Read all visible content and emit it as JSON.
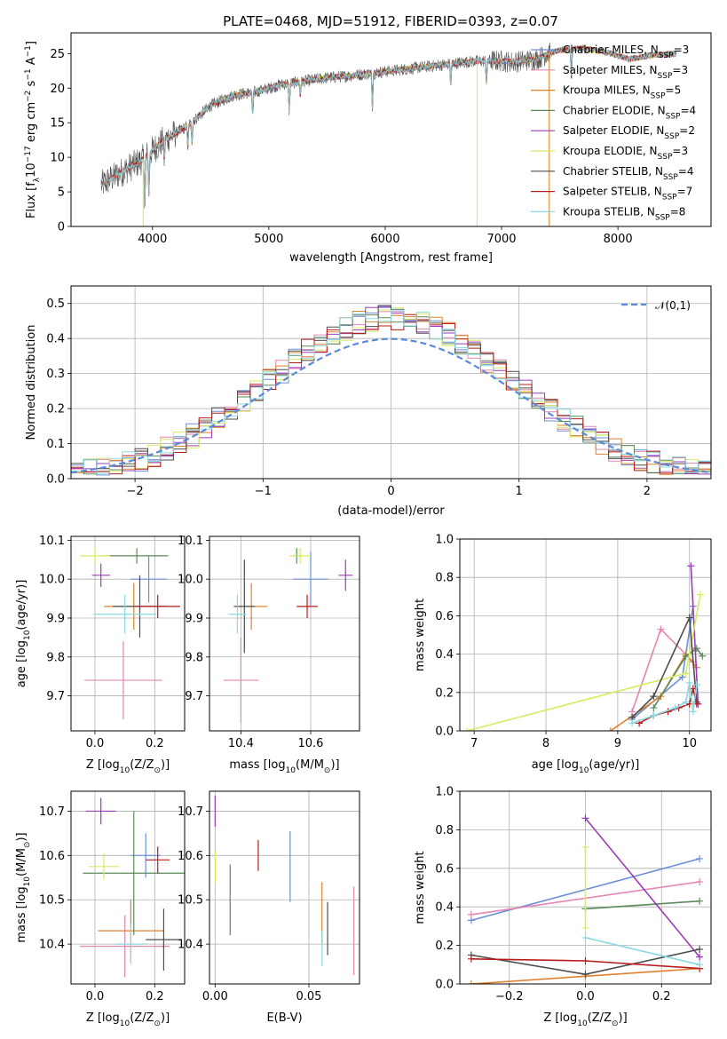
{
  "figure_title": "PLATE=0468, MJD=51912, FIBERID=0393, z=0.07",
  "colors": [
    "#6a8fd8",
    "#e486b3",
    "#e0822c",
    "#5c8a5a",
    "#9a3cb8",
    "#d6ec62",
    "#4d4d4d",
    "#b81c1c",
    "#8ad8e0"
  ],
  "chart_data": [
    {
      "id": "spectrum",
      "type": "line",
      "title": "PLATE=0468, MJD=51912, FIBERID=0393, z=0.07",
      "xlabel": "wavelength [Angstrom, rest frame]",
      "ylabel_parts": [
        "Flux [f",
        "λ",
        "10",
        "−17",
        " erg cm",
        "−2",
        " s",
        "−1",
        " A",
        "−1",
        "]"
      ],
      "xlim": [
        3300,
        8800
      ],
      "ylim": [
        0,
        28
      ],
      "xticks": [
        4000,
        5000,
        6000,
        7000,
        8000
      ],
      "yticks": [
        0,
        5,
        10,
        15,
        20,
        25
      ],
      "grid": false,
      "legend_position": "bottom-right",
      "continuum": {
        "x": [
          3560,
          3700,
          3800,
          3900,
          4000,
          4100,
          4200,
          4300,
          4400,
          4500,
          4700,
          4900,
          5100,
          5300,
          5500,
          5700,
          5900,
          6100,
          6300,
          6500,
          6700,
          6900,
          7100,
          7300,
          7400,
          7500,
          7700,
          7900,
          8100,
          8300,
          8500
        ],
        "y": [
          6,
          7.5,
          8.5,
          9.5,
          11,
          12.5,
          13.5,
          14.5,
          16,
          17.5,
          19,
          19.5,
          20.5,
          21,
          21.5,
          21.8,
          22.2,
          22.6,
          23,
          23.4,
          23.8,
          24,
          23.8,
          24.2,
          25,
          25.5,
          25.8,
          25.2,
          24.2,
          24.8,
          25
        ]
      },
      "series": [
        {
          "name_base": "Chabrier MILES, N",
          "name_sub": "SSP",
          "name_tail": "=3",
          "color": "#6a8fd8"
        },
        {
          "name_base": "Salpeter MILES, N",
          "name_sub": "SSP",
          "name_tail": "=3",
          "color": "#e486b3"
        },
        {
          "name_base": "Kroupa MILES, N",
          "name_sub": "SSP",
          "name_tail": "=5",
          "color": "#e0822c"
        },
        {
          "name_base": "Chabrier ELODIE, N",
          "name_sub": "SSP",
          "name_tail": "=4",
          "color": "#5c8a5a"
        },
        {
          "name_base": "Salpeter ELODIE, N",
          "name_sub": "SSP",
          "name_tail": "=2",
          "color": "#9a3cb8"
        },
        {
          "name_base": "Kroupa ELODIE, N",
          "name_sub": "SSP",
          "name_tail": "=3",
          "color": "#d6ec62"
        },
        {
          "name_base": "Chabrier STELIB, N",
          "name_sub": "SSP",
          "name_tail": "=4",
          "color": "#4d4d4d"
        },
        {
          "name_base": "Salpeter STELIB, N",
          "name_sub": "SSP",
          "name_tail": "=7",
          "color": "#b81c1c"
        },
        {
          "name_base": "Kroupa STELIB, N",
          "name_sub": "SSP",
          "name_tail": "=8",
          "color": "#8ad8e0"
        }
      ]
    },
    {
      "id": "residual_hist",
      "type": "histogram",
      "xlabel": "(data-model)/error",
      "ylabel": "Normed distribution",
      "xlim": [
        -2.5,
        2.5
      ],
      "ylim": [
        0,
        0.55
      ],
      "xticks": [
        -2,
        -1,
        0,
        1,
        2
      ],
      "ytick_values": [
        0,
        0.1,
        0.2,
        0.3,
        0.4,
        0.5
      ],
      "ytick_labels": [
        "0.0",
        "0.1",
        "0.2",
        "0.3",
        "0.4",
        "0.5"
      ],
      "xtick_labels": [
        "−2",
        "−1",
        "0",
        "1",
        "2"
      ],
      "grid": true,
      "bin_width": 0.1,
      "legend_label": "𝒩(0,1)",
      "legend_position": "top-right",
      "gaussian": {
        "mean": 0,
        "sigma": 1,
        "color": "#5b8bd8"
      }
    },
    {
      "id": "age_vs_Z",
      "type": "errorbar",
      "xlabel_parts": [
        "Z [log",
        "10",
        "(Z/Z",
        "⊙",
        ")]"
      ],
      "ylabel_parts": [
        "age  [log",
        "10",
        "(age/yr)]"
      ],
      "xlim": [
        -0.08,
        0.3
      ],
      "ylim": [
        9.61,
        10.11
      ],
      "xticks": [
        0,
        0.2
      ],
      "xtick_labels": [
        "0.0",
        "0.2"
      ],
      "yticks": [
        9.7,
        9.8,
        9.9,
        10.0,
        10.1
      ],
      "ytick_labels": [
        "9.7",
        "9.8",
        "9.9",
        "10.0",
        "10.1"
      ],
      "grid": true,
      "points": [
        {
          "x": 0.18,
          "xerr": 0.06,
          "y": 10.0,
          "yerr": 0.06,
          "color": "#6a8fd8"
        },
        {
          "x": 0.095,
          "xerr": 0.13,
          "y": 9.74,
          "yerr": 0.1,
          "color": "#e486b3"
        },
        {
          "x": 0.13,
          "xerr": 0.1,
          "y": 9.93,
          "yerr": 0.06,
          "color": "#e0822c"
        },
        {
          "x": 0.14,
          "xerr": 0.105,
          "y": 10.06,
          "yerr": 0.02,
          "color": "#5c8a5a"
        },
        {
          "x": 0.02,
          "xerr": 0.03,
          "y": 10.01,
          "yerr": 0.03,
          "color": "#9a3cb8"
        },
        {
          "x": 0.0,
          "xerr": 0.05,
          "y": 10.06,
          "yerr": 0.02,
          "color": "#d6ec62"
        },
        {
          "x": 0.15,
          "xerr": 0.09,
          "y": 9.93,
          "yerr": 0.08,
          "color": "#4d4d4d"
        },
        {
          "x": 0.21,
          "xerr": 0.075,
          "y": 9.93,
          "yerr": 0.03,
          "color": "#b81c1c"
        },
        {
          "x": 0.1,
          "xerr": 0.105,
          "y": 9.91,
          "yerr": 0.05,
          "color": "#8ad8e0"
        }
      ]
    },
    {
      "id": "age_vs_mass",
      "type": "errorbar",
      "xlabel_parts": [
        "mass [log",
        "10",
        "(M/M",
        "⊙",
        ")]"
      ],
      "xlim": [
        10.31,
        10.74
      ],
      "ylim": [
        9.61,
        10.11
      ],
      "xticks": [
        10.4,
        10.6
      ],
      "xtick_labels": [
        "10.4",
        "10.6"
      ],
      "yticks": [
        9.7,
        9.8,
        9.9,
        10.0,
        10.1
      ],
      "ytick_labels": [
        "9.7",
        "9.8",
        "9.9",
        "10.0",
        "10.1"
      ],
      "grid": true,
      "points": [
        {
          "x": 10.6,
          "xerr": 0.05,
          "y": 10.0,
          "yerr": 0.07,
          "color": "#6a8fd8"
        },
        {
          "x": 10.4,
          "xerr": 0.05,
          "y": 9.74,
          "yerr": 0.11,
          "color": "#e486b3"
        },
        {
          "x": 10.43,
          "xerr": 0.045,
          "y": 9.93,
          "yerr": 0.06,
          "color": "#e0822c"
        },
        {
          "x": 10.56,
          "xerr": 0.01,
          "y": 10.06,
          "yerr": 0.02,
          "color": "#5c8a5a"
        },
        {
          "x": 10.7,
          "xerr": 0.02,
          "y": 10.01,
          "yerr": 0.04,
          "color": "#9a3cb8"
        },
        {
          "x": 10.57,
          "xerr": 0.03,
          "y": 10.06,
          "yerr": 0.02,
          "color": "#d6ec62"
        },
        {
          "x": 10.41,
          "xerr": 0.03,
          "y": 9.93,
          "yerr": 0.12,
          "color": "#4d4d4d"
        },
        {
          "x": 10.59,
          "xerr": 0.03,
          "y": 9.93,
          "yerr": 0.03,
          "color": "#b81c1c"
        },
        {
          "x": 10.39,
          "xerr": 0.025,
          "y": 9.91,
          "yerr": 0.05,
          "color": "#8ad8e0"
        }
      ]
    },
    {
      "id": "mass_weight_vs_age",
      "type": "line",
      "xlabel_parts": [
        "age  [log",
        "10",
        "(age/yr)]"
      ],
      "ylabel": "mass weight",
      "xlim": [
        6.8,
        10.3
      ],
      "ylim": [
        0,
        1
      ],
      "xticks": [
        7,
        8,
        9,
        10
      ],
      "xtick_labels": [
        "7",
        "8",
        "9",
        "10"
      ],
      "yticks": [
        0,
        0.2,
        0.4,
        0.6,
        0.8,
        1.0
      ],
      "ytick_labels": [
        "0.0",
        "0.2",
        "0.4",
        "0.6",
        "0.8",
        "1.0"
      ],
      "grid": true,
      "series": [
        {
          "color": "#6a8fd8",
          "x": [
            9.2,
            9.9,
            10.05
          ],
          "y": [
            0.06,
            0.28,
            0.65
          ]
        },
        {
          "color": "#e486b3",
          "x": [
            9.2,
            9.6,
            10.05
          ],
          "y": [
            0.1,
            0.53,
            0.36
          ]
        },
        {
          "color": "#e0822c",
          "x": [
            8.9,
            9.6,
            9.95,
            10.1
          ],
          "y": [
            0.0,
            0.18,
            0.4,
            0.33
          ]
        },
        {
          "color": "#5c8a5a",
          "x": [
            9.5,
            9.95,
            10.1,
            10.18
          ],
          "y": [
            0.12,
            0.39,
            0.43,
            0.39
          ]
        },
        {
          "color": "#9a3cb8",
          "x": [
            10.02,
            10.12
          ],
          "y": [
            0.86,
            0.14
          ]
        },
        {
          "color": "#d6ec62",
          "x": [
            6.9,
            9.95,
            10.15
          ],
          "y": [
            0.0,
            0.3,
            0.71
          ]
        },
        {
          "color": "#4d4d4d",
          "x": [
            9.2,
            9.5,
            10.0,
            10.1
          ],
          "y": [
            0.07,
            0.18,
            0.59,
            0.15
          ]
        },
        {
          "color": "#b81c1c",
          "x": [
            9.3,
            9.5,
            9.7,
            9.85,
            10.0,
            10.05,
            10.1
          ],
          "y": [
            0.04,
            0.08,
            0.1,
            0.12,
            0.14,
            0.22,
            0.14
          ]
        },
        {
          "color": "#8ad8e0",
          "x": [
            9.2,
            9.5,
            9.8,
            9.95,
            10.0,
            10.05,
            10.1
          ],
          "y": [
            0.04,
            0.08,
            0.12,
            0.15,
            0.25,
            0.1,
            0.24
          ]
        }
      ]
    },
    {
      "id": "mass_vs_Z",
      "type": "errorbar",
      "xlabel_parts": [
        "Z [log",
        "10",
        "(Z/Z",
        "⊙",
        ")]"
      ],
      "ylabel_parts": [
        "mass [log",
        "10",
        "(M/M",
        "⊙",
        ")]"
      ],
      "xlim": [
        -0.08,
        0.3
      ],
      "ylim": [
        10.31,
        10.745
      ],
      "xticks": [
        0,
        0.2
      ],
      "xtick_labels": [
        "0.0",
        "0.2"
      ],
      "yticks": [
        10.4,
        10.5,
        10.6,
        10.7
      ],
      "ytick_labels": [
        "10.4",
        "10.5",
        "10.6",
        "10.7"
      ],
      "grid": true,
      "points": [
        {
          "x": 0.17,
          "xerr": 0.05,
          "y": 10.6,
          "yerr": 0.05,
          "color": "#6a8fd8"
        },
        {
          "x": 0.1,
          "xerr": 0.15,
          "y": 10.395,
          "yerr": 0.07,
          "color": "#e486b3"
        },
        {
          "x": 0.12,
          "xerr": 0.11,
          "y": 10.43,
          "yerr": 0.07,
          "color": "#e0822c"
        },
        {
          "x": 0.13,
          "xerr": 0.17,
          "y": 10.56,
          "yerr": 0.14,
          "color": "#5c8a5a"
        },
        {
          "x": 0.02,
          "xerr": 0.05,
          "y": 10.7,
          "yerr": 0.03,
          "color": "#9a3cb8"
        },
        {
          "x": 0.03,
          "xerr": 0.05,
          "y": 10.575,
          "yerr": 0.03,
          "color": "#d6ec62"
        },
        {
          "x": 0.23,
          "xerr": 0.06,
          "y": 10.41,
          "yerr": 0.07,
          "color": "#4d4d4d"
        },
        {
          "x": 0.21,
          "xerr": 0.04,
          "y": 10.59,
          "yerr": 0.03,
          "color": "#b81c1c"
        },
        {
          "x": 0.12,
          "xerr": 0.05,
          "y": 10.4,
          "yerr": 0.045,
          "color": "#8ad8e0"
        }
      ]
    },
    {
      "id": "mass_vs_ebv",
      "type": "errorbar",
      "xlabel": "E(B-V)",
      "xlim": [
        -0.003,
        0.077
      ],
      "ylim": [
        10.31,
        10.745
      ],
      "xticks": [
        0,
        0.05
      ],
      "xtick_labels": [
        "0.00",
        "0.05"
      ],
      "yticks": [
        10.4,
        10.5,
        10.6,
        10.7
      ],
      "ytick_labels": [
        "10.4",
        "10.5",
        "10.6",
        "10.7"
      ],
      "grid": true,
      "points": [
        {
          "x": 0.04,
          "y": 10.575,
          "yerr": 0.08,
          "color": "#6a8fd8"
        },
        {
          "x": 0.074,
          "y": 10.43,
          "yerr": 0.1,
          "color": "#e486b3"
        },
        {
          "x": 0.057,
          "y": 10.47,
          "yerr": 0.07,
          "color": "#e0822c"
        },
        {
          "x": 0.008,
          "y": 10.5,
          "yerr": 0.08,
          "color": "#5c8a5a"
        },
        {
          "x": 0.0,
          "y": 10.7,
          "yerr": 0.035,
          "color": "#9a3cb8"
        },
        {
          "x": 0.0,
          "y": 10.575,
          "yerr": 0.035,
          "color": "#d6ec62"
        },
        {
          "x": 0.06,
          "y": 10.435,
          "yerr": 0.06,
          "color": "#4d4d4d"
        },
        {
          "x": 0.023,
          "y": 10.6,
          "yerr": 0.035,
          "color": "#b81c1c"
        },
        {
          "x": 0.057,
          "y": 10.39,
          "yerr": 0.04,
          "color": "#8ad8e0"
        }
      ]
    },
    {
      "id": "mass_weight_vs_Z",
      "type": "line",
      "xlabel_parts": [
        "Z [log",
        "10",
        "(Z/Z",
        "⊙",
        ")]"
      ],
      "ylabel": "mass weight",
      "xlim": [
        -0.33,
        0.33
      ],
      "ylim": [
        0,
        1
      ],
      "xticks": [
        -0.2,
        0,
        0.2
      ],
      "xtick_labels": [
        "−0.2",
        "0.0",
        "0.2"
      ],
      "yticks": [
        0,
        0.2,
        0.4,
        0.6,
        0.8,
        1.0
      ],
      "ytick_labels": [
        "0.0",
        "0.2",
        "0.4",
        "0.6",
        "0.8",
        "1.0"
      ],
      "grid": true,
      "series": [
        {
          "color": "#6a8fd8",
          "x": [
            -0.3,
            0.3
          ],
          "y": [
            0.33,
            0.65
          ]
        },
        {
          "color": "#e486b3",
          "x": [
            -0.3,
            0.3
          ],
          "y": [
            0.36,
            0.53
          ]
        },
        {
          "color": "#e0822c",
          "x": [
            -0.3,
            0.0,
            0.3
          ],
          "y": [
            0.0,
            0.04,
            0.08
          ]
        },
        {
          "color": "#5c8a5a",
          "x": [
            0.0,
            0.3
          ],
          "y": [
            0.39,
            0.43
          ]
        },
        {
          "color": "#9a3cb8",
          "x": [
            0.0,
            0.3
          ],
          "y": [
            0.86,
            0.14
          ]
        },
        {
          "color": "#d6ec62",
          "x": [
            0.0,
            0.0
          ],
          "y": [
            0.29,
            0.71
          ]
        },
        {
          "color": "#4d4d4d",
          "x": [
            -0.3,
            0.0,
            0.3
          ],
          "y": [
            0.15,
            0.05,
            0.18
          ]
        },
        {
          "color": "#b81c1c",
          "x": [
            -0.3,
            0.0,
            0.3
          ],
          "y": [
            0.13,
            0.12,
            0.08
          ]
        },
        {
          "color": "#8ad8e0",
          "x": [
            0.0,
            0.3
          ],
          "y": [
            0.24,
            0.1
          ]
        }
      ]
    }
  ]
}
